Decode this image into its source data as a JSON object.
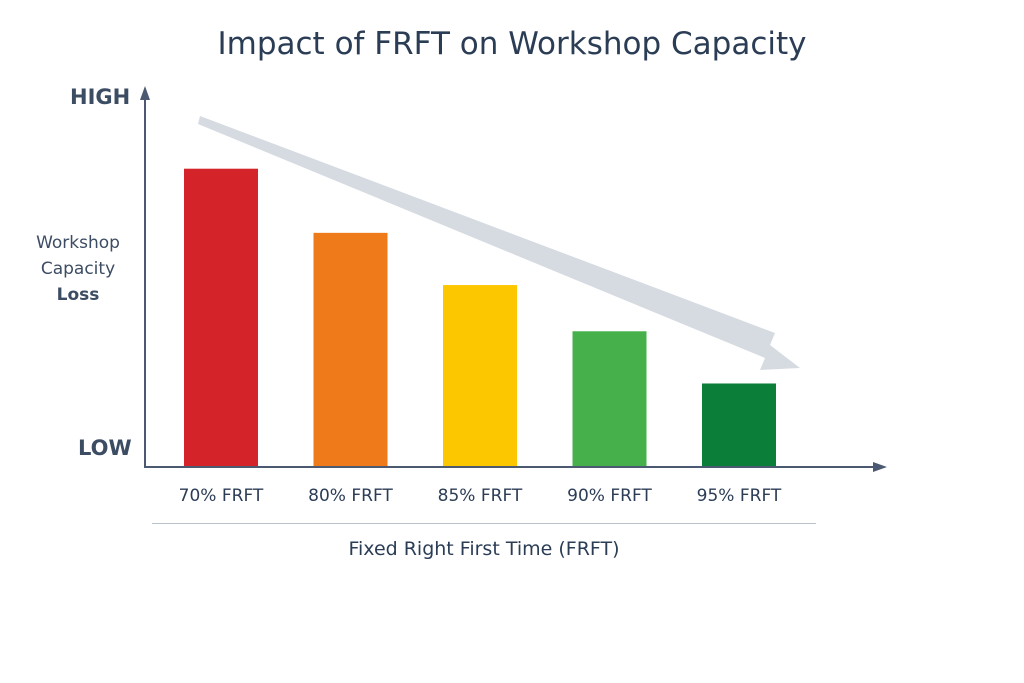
{
  "chart_data": {
    "type": "bar",
    "title": "Impact of FRFT on Workshop Capacity",
    "xlabel": "Fixed Right First Time (FRFT)",
    "ylabel": [
      "Workshop",
      "Capacity",
      "Loss"
    ],
    "y_high_label": "HIGH",
    "y_low_label": "LOW",
    "categories": [
      "70% FRFT",
      "80% FRFT",
      "85% FRFT",
      "90% FRFT",
      "95% FRFT"
    ],
    "values": [
      100,
      78.5,
      61,
      45.5,
      28
    ],
    "ylim": [
      0,
      117
    ],
    "bar_colors": [
      "#d42329",
      "#ef7a1a",
      "#fdc700",
      "#46b04a",
      "#0b7f3a"
    ],
    "trend_arrow": "decreasing",
    "grid": false
  }
}
